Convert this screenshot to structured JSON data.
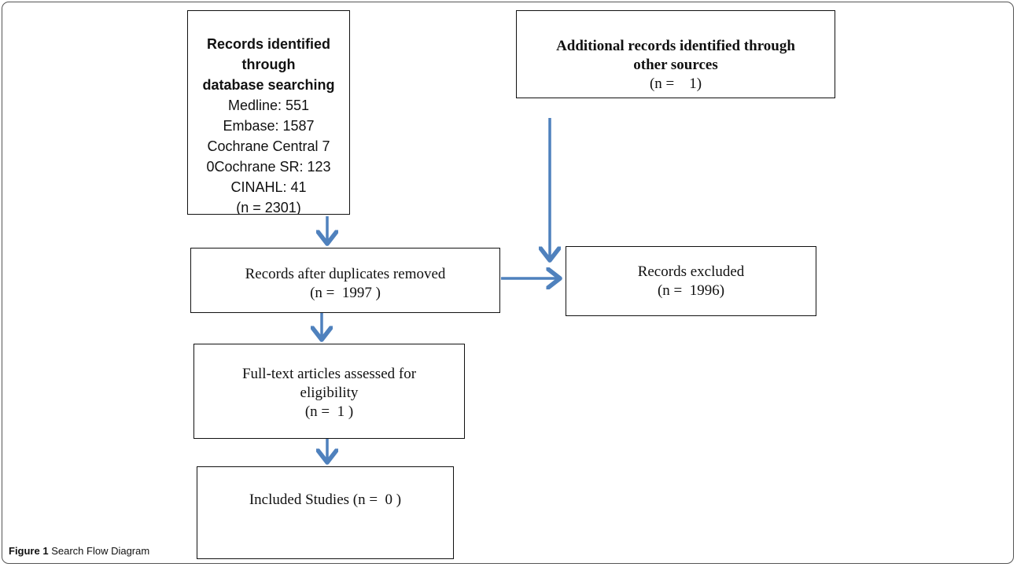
{
  "figure": {
    "label": "Figure 1",
    "title": "Search Flow Diagram"
  },
  "boxes": {
    "database": {
      "heading1": "Records identified through",
      "heading2": "database searching",
      "lines": [
        "Medline: 551",
        "Embase: 1587",
        "Cochrane Central 7",
        "0Cochrane SR: 123",
        "CINAHL: 41",
        "(n = 2301)"
      ]
    },
    "other_sources": {
      "heading1": "Additional records identified through",
      "heading2": "other sources",
      "count": "(n =    1)"
    },
    "duplicates_removed": {
      "text": "Records after duplicates removed",
      "count": "(n =  1997 )"
    },
    "excluded": {
      "text": "Records excluded",
      "count": "(n =  1996)"
    },
    "full_text": {
      "line1": "Full-text articles assessed for",
      "line2": "eligibility",
      "count": "(n =  1 )"
    },
    "included": {
      "text": "Included Studies (n =  0 )"
    }
  },
  "colors": {
    "arrow": "#4f81bd",
    "box_border": "#111111"
  }
}
